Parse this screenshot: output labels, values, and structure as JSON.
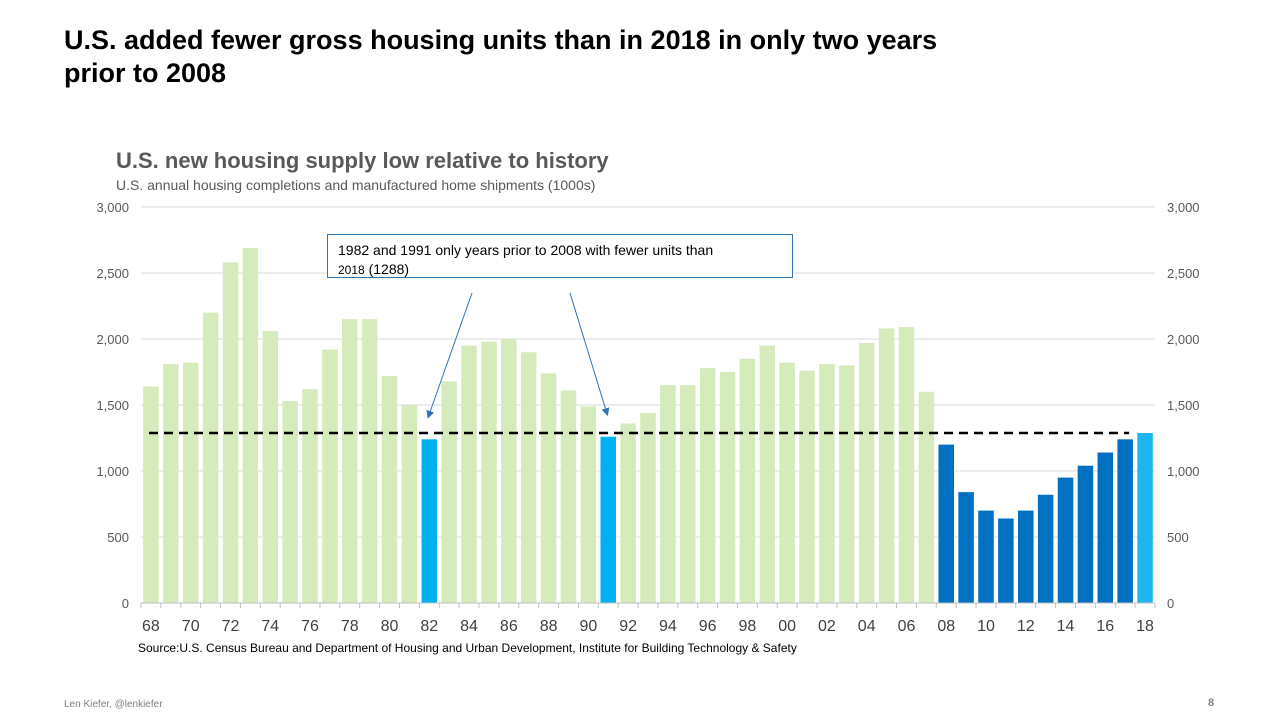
{
  "slide": {
    "title": "U.S. added fewer gross housing units than in 2018 in only two years prior to 2008",
    "author": "Len Kiefer, @lenkiefer",
    "page_number": "8"
  },
  "chart_data": {
    "type": "bar",
    "title": "U.S. new housing supply low relative to history",
    "subtitle": "U.S. annual housing completions and manufactured home shipments (1000s)",
    "source": "Source:U.S. Census Bureau and Department of Housing and Urban Development,  Institute for Building Technology & Safety",
    "annotation": {
      "line1": "1982 and 1991 only years prior to 2008 with fewer units than",
      "line2_small": "2018",
      "line2_rest": " (1288)"
    },
    "reference_line": {
      "value": 1288
    },
    "ylim": [
      0,
      3000
    ],
    "y_ticks": [
      0,
      500,
      1000,
      1500,
      2000,
      2500,
      3000
    ],
    "y_tick_labels": [
      "0",
      "500",
      "1,000",
      "1,500",
      "2,000",
      "2,500",
      "3,000"
    ],
    "x_tick_labels": [
      "68",
      "70",
      "72",
      "74",
      "76",
      "78",
      "80",
      "82",
      "84",
      "86",
      "88",
      "90",
      "92",
      "94",
      "96",
      "98",
      "00",
      "02",
      "04",
      "06",
      "08",
      "10",
      "12",
      "14",
      "16",
      "18"
    ],
    "categories": [
      "1968",
      "1969",
      "1970",
      "1971",
      "1972",
      "1973",
      "1974",
      "1975",
      "1976",
      "1977",
      "1978",
      "1979",
      "1980",
      "1981",
      "1982",
      "1983",
      "1984",
      "1985",
      "1986",
      "1987",
      "1988",
      "1989",
      "1990",
      "1991",
      "1992",
      "1993",
      "1994",
      "1995",
      "1996",
      "1997",
      "1998",
      "1999",
      "2000",
      "2001",
      "2002",
      "2003",
      "2004",
      "2005",
      "2006",
      "2007",
      "2008",
      "2009",
      "2010",
      "2011",
      "2012",
      "2013",
      "2014",
      "2015",
      "2016",
      "2017",
      "2018"
    ],
    "values": [
      1640,
      1810,
      1820,
      2200,
      2580,
      2690,
      2060,
      1530,
      1620,
      1920,
      2150,
      2150,
      1720,
      1500,
      1240,
      1680,
      1950,
      1980,
      2000,
      1900,
      1740,
      1610,
      1490,
      1260,
      1360,
      1440,
      1650,
      1650,
      1780,
      1750,
      1850,
      1950,
      1820,
      1760,
      1810,
      1800,
      1970,
      2080,
      2090,
      1600,
      1200,
      840,
      700,
      640,
      700,
      820,
      950,
      1040,
      1140,
      1240,
      1288
    ],
    "highlight_colors": {
      "history": "#d5ebbc",
      "below_2018": "#00b0f0",
      "post_2008": "#0070c0",
      "year_2018": "#1fb5ee"
    },
    "highlight_years": [
      "1982",
      "1991"
    ]
  }
}
